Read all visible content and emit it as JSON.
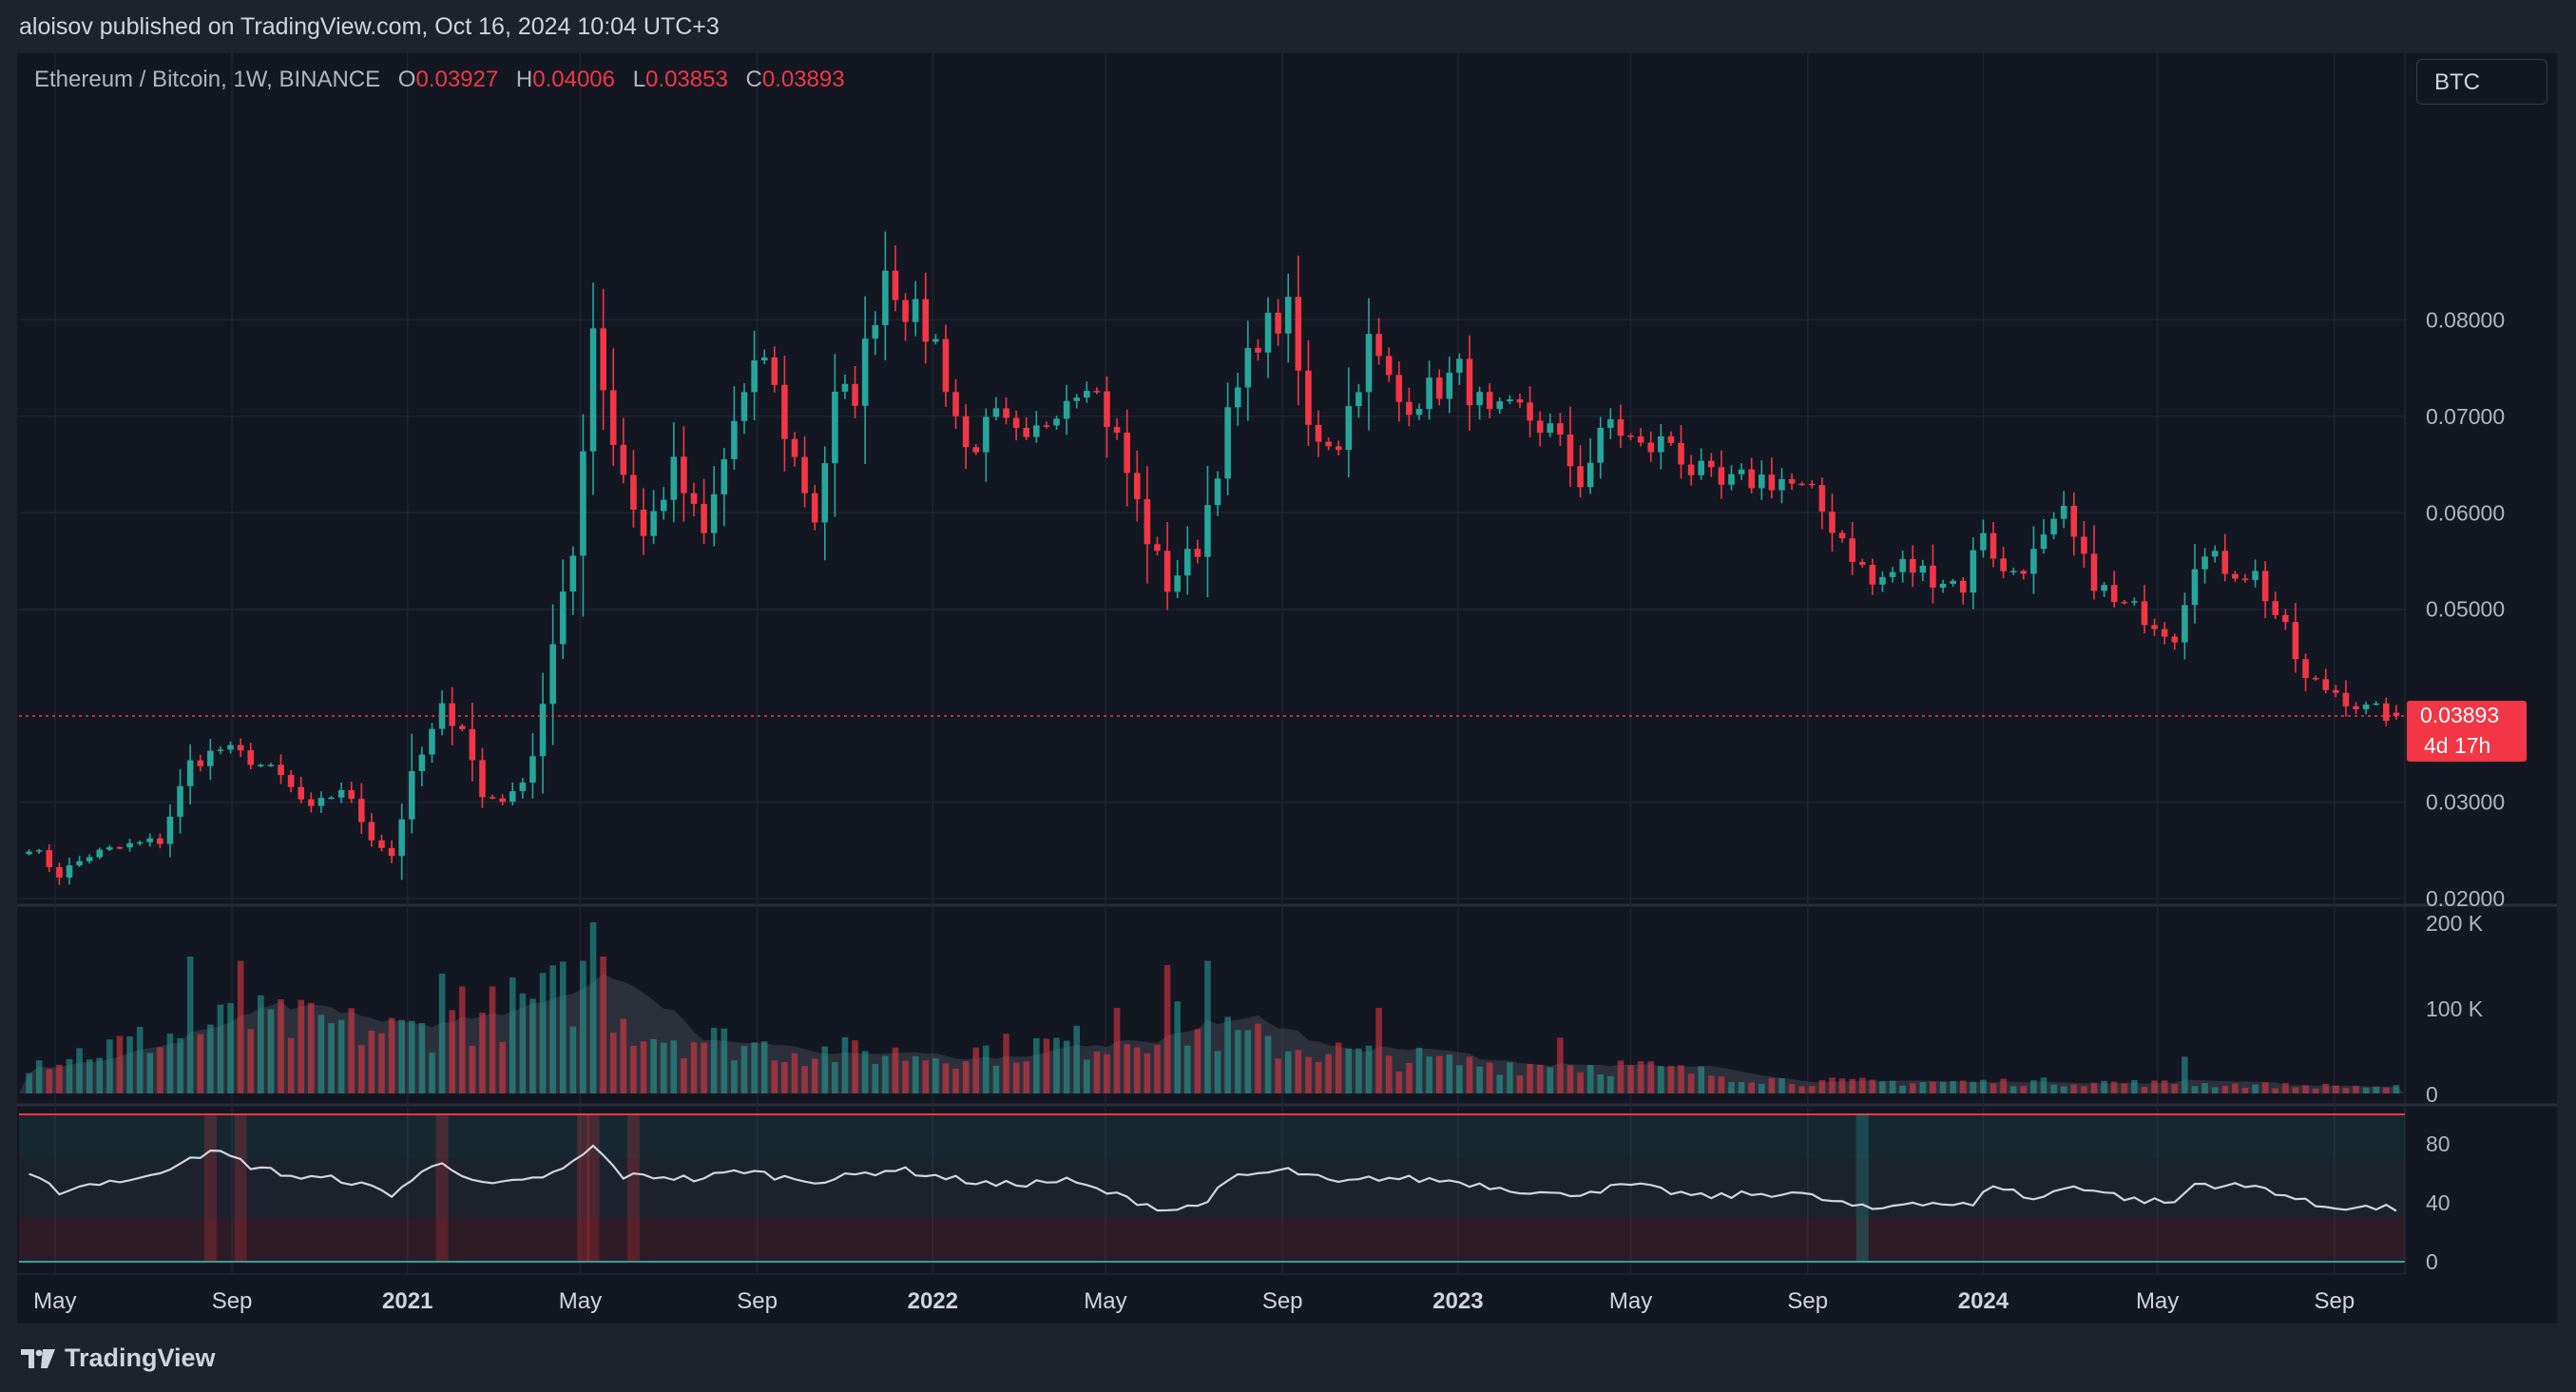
{
  "header": {
    "published": "aloisov published on TradingView.com, Oct 16, 2024 10:04 UTC+3"
  },
  "legend": {
    "symbol": "Ethereum / Bitcoin, 1W, BINANCE",
    "o_label": "O",
    "o": "0.03927",
    "h_label": "H",
    "h": "0.04006",
    "l_label": "L",
    "l": "0.03853",
    "c_label": "C",
    "c": "0.03893"
  },
  "currency_button": "BTC",
  "last_price": {
    "value": "0.03893",
    "countdown": "4d 17h"
  },
  "footer": {
    "brand": "TradingView",
    "logo_icon": "tradingview-logo-icon"
  },
  "colors": {
    "up": "#26a69a",
    "down": "#f23645",
    "bg": "#131722",
    "frame": "#1e222d",
    "rsi_line": "#d1d4dc"
  },
  "chart_data": [
    {
      "type": "candlestick",
      "symbol": "ETH/BTC",
      "interval": "1W",
      "ylim": [
        0.02,
        0.09
      ],
      "yticks": [
        "0.08000",
        "0.07000",
        "0.06000",
        "0.05000",
        "0.03000",
        "0.02000"
      ],
      "x_labels": [
        {
          "label": "May",
          "date": "2020-05-01",
          "bold": false
        },
        {
          "label": "Sep",
          "date": "2020-09-01",
          "bold": false
        },
        {
          "label": "2021",
          "date": "2021-01-01",
          "bold": true
        },
        {
          "label": "May",
          "date": "2021-05-01",
          "bold": false
        },
        {
          "label": "Sep",
          "date": "2021-09-01",
          "bold": false
        },
        {
          "label": "2022",
          "date": "2022-01-01",
          "bold": true
        },
        {
          "label": "May",
          "date": "2022-05-01",
          "bold": false
        },
        {
          "label": "Sep",
          "date": "2022-09-01",
          "bold": false
        },
        {
          "label": "2023",
          "date": "2023-01-01",
          "bold": true
        },
        {
          "label": "May",
          "date": "2023-05-01",
          "bold": false
        },
        {
          "label": "Sep",
          "date": "2023-09-01",
          "bold": false
        },
        {
          "label": "2024",
          "date": "2024-01-01",
          "bold": true
        },
        {
          "label": "May",
          "date": "2024-05-01",
          "bold": false
        },
        {
          "label": "Sep",
          "date": "2024-09-01",
          "bold": false
        }
      ],
      "close_anchors": [
        [
          "2020-04-13",
          0.0255
        ],
        [
          "2020-05-04",
          0.0225
        ],
        [
          "2020-05-25",
          0.0245
        ],
        [
          "2020-06-22",
          0.0255
        ],
        [
          "2020-07-13",
          0.026
        ],
        [
          "2020-08-03",
          0.034
        ],
        [
          "2020-08-24",
          0.0355
        ],
        [
          "2020-09-14",
          0.0345
        ],
        [
          "2020-10-05",
          0.0325
        ],
        [
          "2020-10-26",
          0.029
        ],
        [
          "2020-11-16",
          0.0315
        ],
        [
          "2020-12-07",
          0.0265
        ],
        [
          "2020-12-21",
          0.0245
        ],
        [
          "2021-01-04",
          0.0325
        ],
        [
          "2021-01-25",
          0.0395
        ],
        [
          "2021-02-08",
          0.038
        ],
        [
          "2021-02-22",
          0.0305
        ],
        [
          "2021-03-15",
          0.0305
        ],
        [
          "2021-03-29",
          0.035
        ],
        [
          "2021-04-12",
          0.046
        ],
        [
          "2021-04-26",
          0.0555
        ],
        [
          "2021-05-10",
          0.0795
        ],
        [
          "2021-05-24",
          0.0675
        ],
        [
          "2021-06-14",
          0.0575
        ],
        [
          "2021-07-05",
          0.0645
        ],
        [
          "2021-07-26",
          0.0575
        ],
        [
          "2021-08-16",
          0.0695
        ],
        [
          "2021-09-06",
          0.0765
        ],
        [
          "2021-09-20",
          0.0685
        ],
        [
          "2021-10-11",
          0.0595
        ],
        [
          "2021-10-25",
          0.0715
        ],
        [
          "2021-11-08",
          0.0725
        ],
        [
          "2021-11-29",
          0.0855
        ],
        [
          "2021-12-13",
          0.0815
        ],
        [
          "2022-01-03",
          0.0775
        ],
        [
          "2022-01-24",
          0.0665
        ],
        [
          "2022-02-14",
          0.0695
        ],
        [
          "2022-03-07",
          0.0665
        ],
        [
          "2022-03-28",
          0.0715
        ],
        [
          "2022-04-18",
          0.0745
        ],
        [
          "2022-05-09",
          0.0675
        ],
        [
          "2022-05-30",
          0.0575
        ],
        [
          "2022-06-13",
          0.0525
        ],
        [
          "2022-07-04",
          0.0565
        ],
        [
          "2022-07-25",
          0.0695
        ],
        [
          "2022-08-15",
          0.0785
        ],
        [
          "2022-09-05",
          0.0805
        ],
        [
          "2022-09-19",
          0.0685
        ],
        [
          "2022-10-10",
          0.0675
        ],
        [
          "2022-10-31",
          0.0775
        ],
        [
          "2022-11-21",
          0.0715
        ],
        [
          "2022-12-12",
          0.0725
        ],
        [
          "2023-01-02",
          0.0745
        ],
        [
          "2023-01-23",
          0.0695
        ],
        [
          "2023-02-13",
          0.0705
        ],
        [
          "2023-03-06",
          0.0685
        ],
        [
          "2023-03-27",
          0.0635
        ],
        [
          "2023-04-17",
          0.0695
        ],
        [
          "2023-05-08",
          0.0665
        ],
        [
          "2023-05-29",
          0.0675
        ],
        [
          "2023-06-12",
          0.0645
        ],
        [
          "2023-07-03",
          0.0625
        ],
        [
          "2023-07-24",
          0.0635
        ],
        [
          "2023-08-14",
          0.0635
        ],
        [
          "2023-09-04",
          0.0615
        ],
        [
          "2023-09-25",
          0.0575
        ],
        [
          "2023-10-16",
          0.0525
        ],
        [
          "2023-11-06",
          0.0545
        ],
        [
          "2023-11-27",
          0.0535
        ],
        [
          "2023-12-18",
          0.0525
        ],
        [
          "2024-01-01",
          0.0585
        ],
        [
          "2024-01-15",
          0.0535
        ],
        [
          "2024-02-05",
          0.0555
        ],
        [
          "2024-02-26",
          0.0595
        ],
        [
          "2024-03-11",
          0.0545
        ],
        [
          "2024-04-01",
          0.0505
        ],
        [
          "2024-04-22",
          0.0495
        ],
        [
          "2024-05-13",
          0.0475
        ],
        [
          "2024-05-27",
          0.0555
        ],
        [
          "2024-06-17",
          0.0545
        ],
        [
          "2024-07-08",
          0.0535
        ],
        [
          "2024-07-29",
          0.0475
        ],
        [
          "2024-08-12",
          0.0425
        ],
        [
          "2024-09-02",
          0.0415
        ],
        [
          "2024-09-23",
          0.0395
        ],
        [
          "2024-10-14",
          0.0389
        ]
      ],
      "last_candle": {
        "open": 0.03927,
        "high": 0.04006,
        "low": 0.03853,
        "close": 0.03893
      }
    },
    {
      "type": "bar",
      "name": "volume",
      "yticks": [
        "200 K",
        "100 K",
        "0"
      ],
      "ylim": [
        0,
        200000
      ],
      "anchors": [
        [
          "2020-04-13",
          40000
        ],
        [
          "2020-08-03",
          80000
        ],
        [
          "2020-09-07",
          95000
        ],
        [
          "2020-12-28",
          80000
        ],
        [
          "2021-02-01",
          90000
        ],
        [
          "2021-05-10",
          140000
        ],
        [
          "2021-06-14",
          80000
        ],
        [
          "2021-10-04",
          55000
        ],
        [
          "2022-01-03",
          50000
        ],
        [
          "2022-05-09",
          70000
        ],
        [
          "2022-06-13",
          90000
        ],
        [
          "2022-09-05",
          60000
        ],
        [
          "2022-12-26",
          40000
        ],
        [
          "2023-05-01",
          35000
        ],
        [
          "2023-08-28",
          15000
        ],
        [
          "2024-03-04",
          15000
        ],
        [
          "2024-10-14",
          8000
        ]
      ],
      "spikes": [
        [
          "2020-08-03",
          160000
        ],
        [
          "2020-09-07",
          155000
        ],
        [
          "2021-01-25",
          140000
        ],
        [
          "2021-02-08",
          125000
        ],
        [
          "2021-05-10",
          200000
        ],
        [
          "2021-05-03",
          155000
        ],
        [
          "2021-05-17",
          160000
        ],
        [
          "2022-05-09",
          100000
        ],
        [
          "2022-06-13",
          150000
        ],
        [
          "2022-07-11",
          155000
        ],
        [
          "2022-11-07",
          100000
        ],
        [
          "2023-03-13",
          65000
        ],
        [
          "2024-05-20",
          43000
        ]
      ]
    },
    {
      "type": "line",
      "name": "rsi",
      "yticks": [
        "80",
        "40",
        "0"
      ],
      "ylim": [
        0,
        100
      ],
      "overbought": 70,
      "oversold": 30,
      "upper_band": 100,
      "lower_band": 0,
      "anchors": [
        [
          "2020-04-13",
          58
        ],
        [
          "2020-05-04",
          48
        ],
        [
          "2020-06-01",
          54
        ],
        [
          "2020-07-06",
          57
        ],
        [
          "2020-08-03",
          72
        ],
        [
          "2020-08-24",
          74
        ],
        [
          "2020-09-14",
          65
        ],
        [
          "2020-10-19",
          57
        ],
        [
          "2020-11-16",
          56
        ],
        [
          "2020-12-21",
          46
        ],
        [
          "2021-01-11",
          60
        ],
        [
          "2021-01-25",
          68
        ],
        [
          "2021-02-22",
          52
        ],
        [
          "2021-03-22",
          54
        ],
        [
          "2021-04-19",
          62
        ],
        [
          "2021-05-10",
          78
        ],
        [
          "2021-05-31",
          58
        ],
        [
          "2021-06-28",
          58
        ],
        [
          "2021-07-19",
          56
        ],
        [
          "2021-08-23",
          62
        ],
        [
          "2021-09-20",
          57
        ],
        [
          "2021-10-18",
          55
        ],
        [
          "2021-11-15",
          60
        ],
        [
          "2021-12-06",
          63
        ],
        [
          "2022-01-10",
          57
        ],
        [
          "2022-02-14",
          52
        ],
        [
          "2022-04-04",
          55
        ],
        [
          "2022-05-09",
          45
        ],
        [
          "2022-06-13",
          35
        ],
        [
          "2022-07-04",
          38
        ],
        [
          "2022-08-01",
          58
        ],
        [
          "2022-09-05",
          62
        ],
        [
          "2022-10-10",
          53
        ],
        [
          "2022-11-07",
          57
        ],
        [
          "2022-12-26",
          55
        ],
        [
          "2023-03-13",
          45
        ],
        [
          "2023-05-01",
          52
        ],
        [
          "2023-06-19",
          44
        ],
        [
          "2023-08-21",
          47
        ],
        [
          "2023-10-16",
          35
        ],
        [
          "2023-11-13",
          41
        ],
        [
          "2023-12-25",
          38
        ],
        [
          "2024-01-08",
          53
        ],
        [
          "2024-02-05",
          42
        ],
        [
          "2024-03-04",
          52
        ],
        [
          "2024-04-15",
          42
        ],
        [
          "2024-05-13",
          40
        ],
        [
          "2024-05-27",
          53
        ],
        [
          "2024-07-15",
          50
        ],
        [
          "2024-08-19",
          38
        ],
        [
          "2024-10-14",
          36
        ]
      ],
      "highlight_weeks_overbought": [
        "2020-08-17",
        "2020-09-07",
        "2021-01-25",
        "2021-05-03",
        "2021-05-10",
        "2021-06-07"
      ],
      "highlight_weeks_oversold": [
        "2023-10-09"
      ]
    }
  ]
}
